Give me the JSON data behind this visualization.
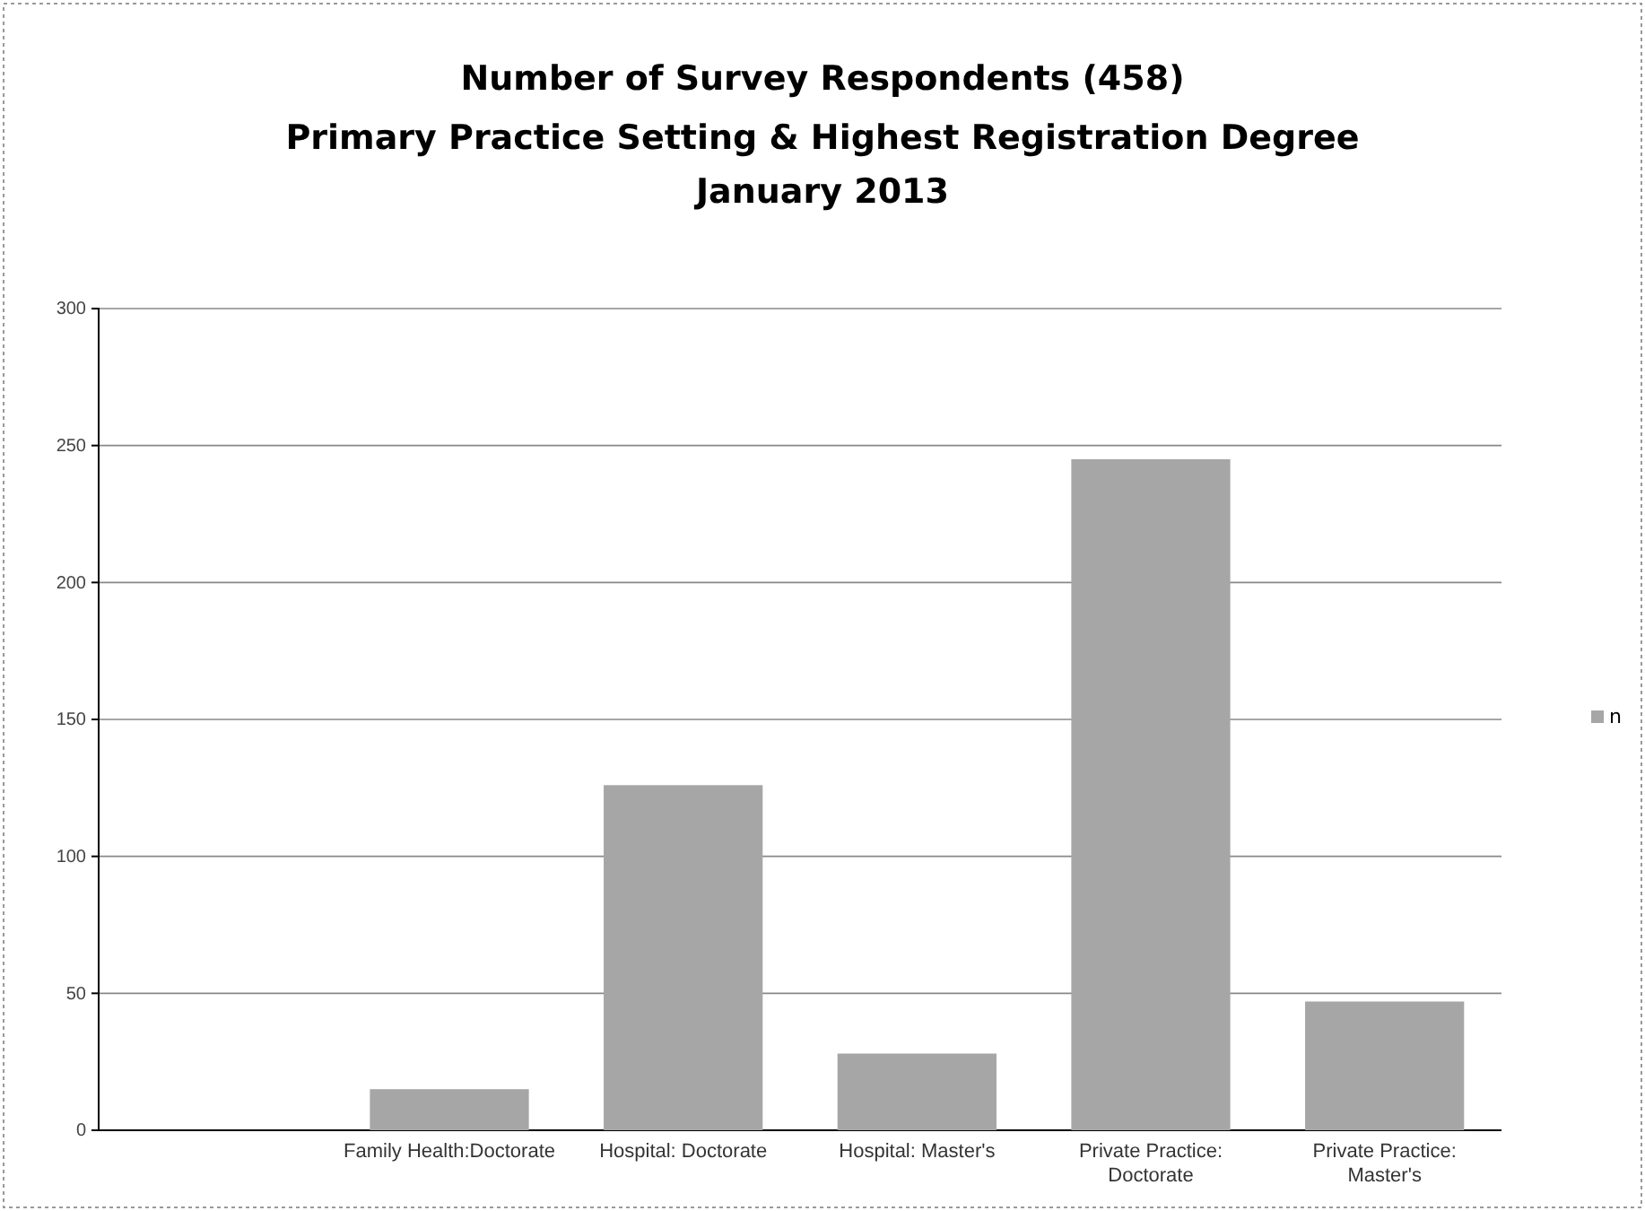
{
  "chart_data": {
    "type": "bar",
    "title": "Number of Survey Respondents (458)",
    "subtitle": "Primary Practice Setting & Highest Registration Degree\nJanuary 2013",
    "categories": [
      null,
      "Family Health:Doctorate",
      "Hospital: Doctorate",
      "Hospital: Master's",
      "Private Practice: Doctorate",
      "Private Practice: Master's"
    ],
    "series": [
      {
        "name": "n",
        "color": "#a6a6a6",
        "values": [
          null,
          15,
          126,
          28,
          245,
          47
        ]
      }
    ],
    "ylim": [
      0,
      300
    ],
    "yticks": [
      0,
      50,
      100,
      150,
      200,
      250,
      300
    ],
    "grid": "y",
    "legend": "right"
  }
}
